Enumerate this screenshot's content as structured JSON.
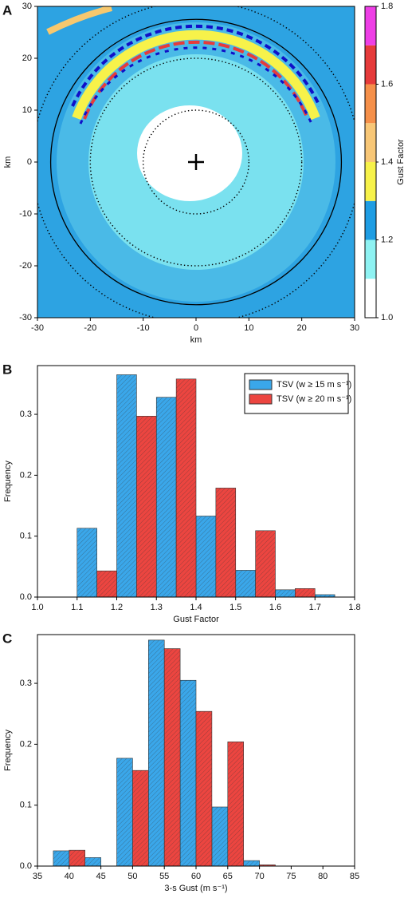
{
  "chart_data": [
    {
      "type": "map",
      "panel": "A",
      "xlabel": "km",
      "ylabel": "km",
      "xlim": [
        -30,
        30
      ],
      "ylim": [
        -30,
        30
      ],
      "xticks": [
        -30,
        -20,
        -10,
        0,
        10,
        20,
        30
      ],
      "yticks": [
        -30,
        -20,
        -10,
        0,
        10,
        20,
        30
      ],
      "rings": [
        {
          "radius": 10,
          "style": "dotted"
        },
        {
          "radius": 20,
          "style": "dotted"
        },
        {
          "radius": 27.5,
          "style": "solid"
        },
        {
          "radius": 31,
          "style": "dotted"
        }
      ],
      "colorbar": {
        "label": "Gust Factor",
        "bounds": [
          1.0,
          1.1,
          1.2,
          1.3,
          1.4,
          1.5,
          1.6,
          1.7,
          1.8
        ],
        "colors": [
          "#ffffff",
          "#8ef2f2",
          "#1f9de3",
          "#f7f24a",
          "#f8c777",
          "#f5904a",
          "#e63b3b",
          "#ee3fe6"
        ],
        "ticks": [
          {
            "value": 1.0,
            "label": "1.0"
          },
          {
            "value": 1.2,
            "label": "1.2"
          },
          {
            "value": 1.4,
            "label": "1.4"
          },
          {
            "value": 1.6,
            "label": "1.6"
          },
          {
            "value": 1.8,
            "label": "1.8"
          }
        ]
      }
    },
    {
      "type": "histogram",
      "panel": "B",
      "xlabel": "Gust Factor",
      "ylabel": "Frequency",
      "bins": [
        1.1,
        1.2,
        1.3,
        1.4,
        1.5,
        1.6,
        1.7,
        1.8
      ],
      "series": [
        {
          "name": "TSV (w ≥ 15 m s⁻¹)",
          "color": "#3aa7ea",
          "values": [
            0.113,
            0.365,
            0.328,
            0.133,
            0.044,
            0.012,
            0.004
          ]
        },
        {
          "name": "TSV (w ≥ 20 m s⁻¹)",
          "color": "#ec4540",
          "values": [
            0.043,
            0.297,
            0.358,
            0.179,
            0.109,
            0.014,
            0
          ]
        }
      ],
      "xlim": [
        1.0,
        1.8
      ],
      "xticks": [
        {
          "value": 1.0,
          "label": "1.0"
        },
        1.1,
        1.2,
        1.3,
        1.4,
        1.5,
        1.6,
        1.7,
        1.8
      ],
      "ylim": [
        0,
        0.38
      ],
      "yticks": [
        {
          "value": 0,
          "label": "0.0"
        },
        0.1,
        0.2,
        0.3
      ],
      "legend": "upper right"
    },
    {
      "type": "histogram",
      "panel": "C",
      "xlabel": "3-s Gust (m s⁻¹)",
      "ylabel": "Frequency",
      "bins": [
        37.5,
        42.5,
        47.5,
        52.5,
        57.5,
        62.5,
        67.5,
        72.5
      ],
      "series": [
        {
          "color": "#3aa7ea",
          "values": [
            0.025,
            0.014,
            0.177,
            0.371,
            0.305,
            0.097,
            0.009
          ]
        },
        {
          "color": "#ec4540",
          "values": [
            0.026,
            0,
            0.157,
            0.357,
            0.254,
            0.204,
            0.002
          ]
        }
      ],
      "xlim": [
        35,
        85
      ],
      "xticks": [
        35,
        40,
        45,
        50,
        55,
        60,
        65,
        70,
        75,
        80,
        85
      ],
      "ylim": [
        0,
        0.38
      ],
      "yticks": [
        {
          "value": 0,
          "label": "0.0"
        },
        0.1,
        0.2,
        0.3
      ]
    }
  ]
}
